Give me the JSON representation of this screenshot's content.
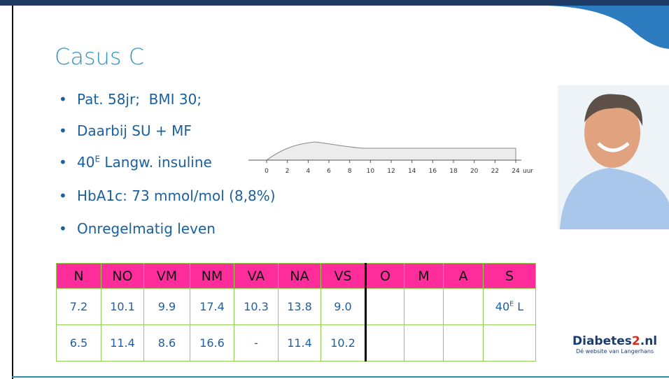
{
  "title": "Casus C",
  "bullets": [
    "Pat. 58jr;  BMI 30;",
    "Daarbij SU + MF",
    [
      "40",
      {
        "sup": "E"
      },
      " Langw. insuline"
    ],
    "HbA1c: 73 mmol/mol (8,8%)",
    "Onregelmatig leven"
  ],
  "insulin_profile": {
    "xticks": [
      0,
      2,
      4,
      6,
      8,
      10,
      12,
      14,
      16,
      18,
      20,
      22,
      24
    ],
    "unit": "uur"
  },
  "table": {
    "header": [
      "N",
      "NO",
      "VM",
      "NM",
      "VA",
      "NA",
      "VS",
      "O",
      "M",
      "A",
      "S"
    ],
    "rows": [
      [
        "7.2",
        "10.1",
        "9.9",
        "17.4",
        "10.3",
        "13.8",
        "9.0",
        null,
        null,
        null,
        [
          "40",
          {
            "sup": "E"
          },
          " L"
        ]
      ],
      [
        "6.5",
        "11.4",
        "8.6",
        "16.6",
        "-",
        "11.4",
        "10.2",
        null,
        null,
        null,
        null
      ]
    ]
  },
  "logo": {
    "name": "Diabetes",
    "number": "2",
    "domain": ".nl",
    "tagline": "Dé website van Langerhans"
  }
}
